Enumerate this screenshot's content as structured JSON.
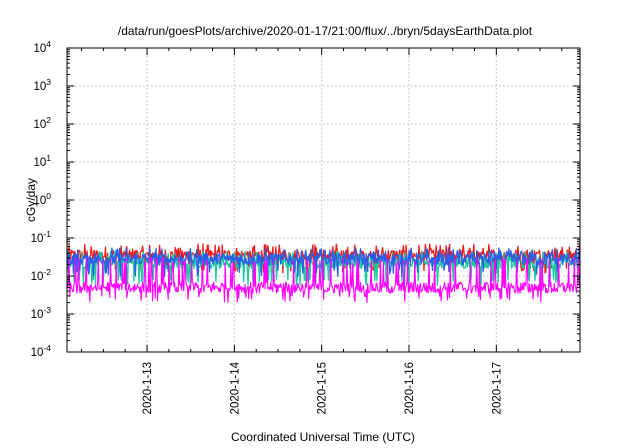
{
  "chart_data": {
    "type": "line",
    "title": "/data/run/goesPlots/archive/2020-01-17/21:00/flux/../bryn/5daysEarthData.plot",
    "xlabel": "Coordinated Universal Time (UTC)",
    "ylabel": "cGy/day",
    "y_scale": "log",
    "ylim": [
      0.0001,
      10000
    ],
    "y_ticks": [
      {
        "base": "10",
        "exp": "-4"
      },
      {
        "base": "10",
        "exp": "-3"
      },
      {
        "base": "10",
        "exp": "-2"
      },
      {
        "base": "10",
        "exp": "-1"
      },
      {
        "base": "10",
        "exp": "0"
      },
      {
        "base": "10",
        "exp": "1"
      },
      {
        "base": "10",
        "exp": "2"
      },
      {
        "base": "10",
        "exp": "3"
      },
      {
        "base": "10",
        "exp": "4"
      }
    ],
    "xlim": [
      "2020-01-12T02:00",
      "2020-01-17T23:00"
    ],
    "x_ticks": [
      "2020-1-13",
      "2020-1-14",
      "2020-1-15",
      "2020-1-16",
      "2020-1-17"
    ],
    "x_tick_dates": [
      "2020-01-13",
      "2020-01-14",
      "2020-01-15",
      "2020-01-16",
      "2020-01-17"
    ],
    "grid": true,
    "series": [
      {
        "color": "#ee1c1c",
        "level": 0.035,
        "lo": 0.015,
        "hi": 0.07
      },
      {
        "color": "#1ec8a0",
        "level": 0.022,
        "lo": 0.007,
        "hi": 0.045
      },
      {
        "color": "#2a5ee8",
        "level": 0.028,
        "lo": 0.012,
        "hi": 0.055
      },
      {
        "color": "#ff00ff",
        "level": 0.005,
        "lo": 0.0025,
        "hi": 0.03
      }
    ]
  }
}
